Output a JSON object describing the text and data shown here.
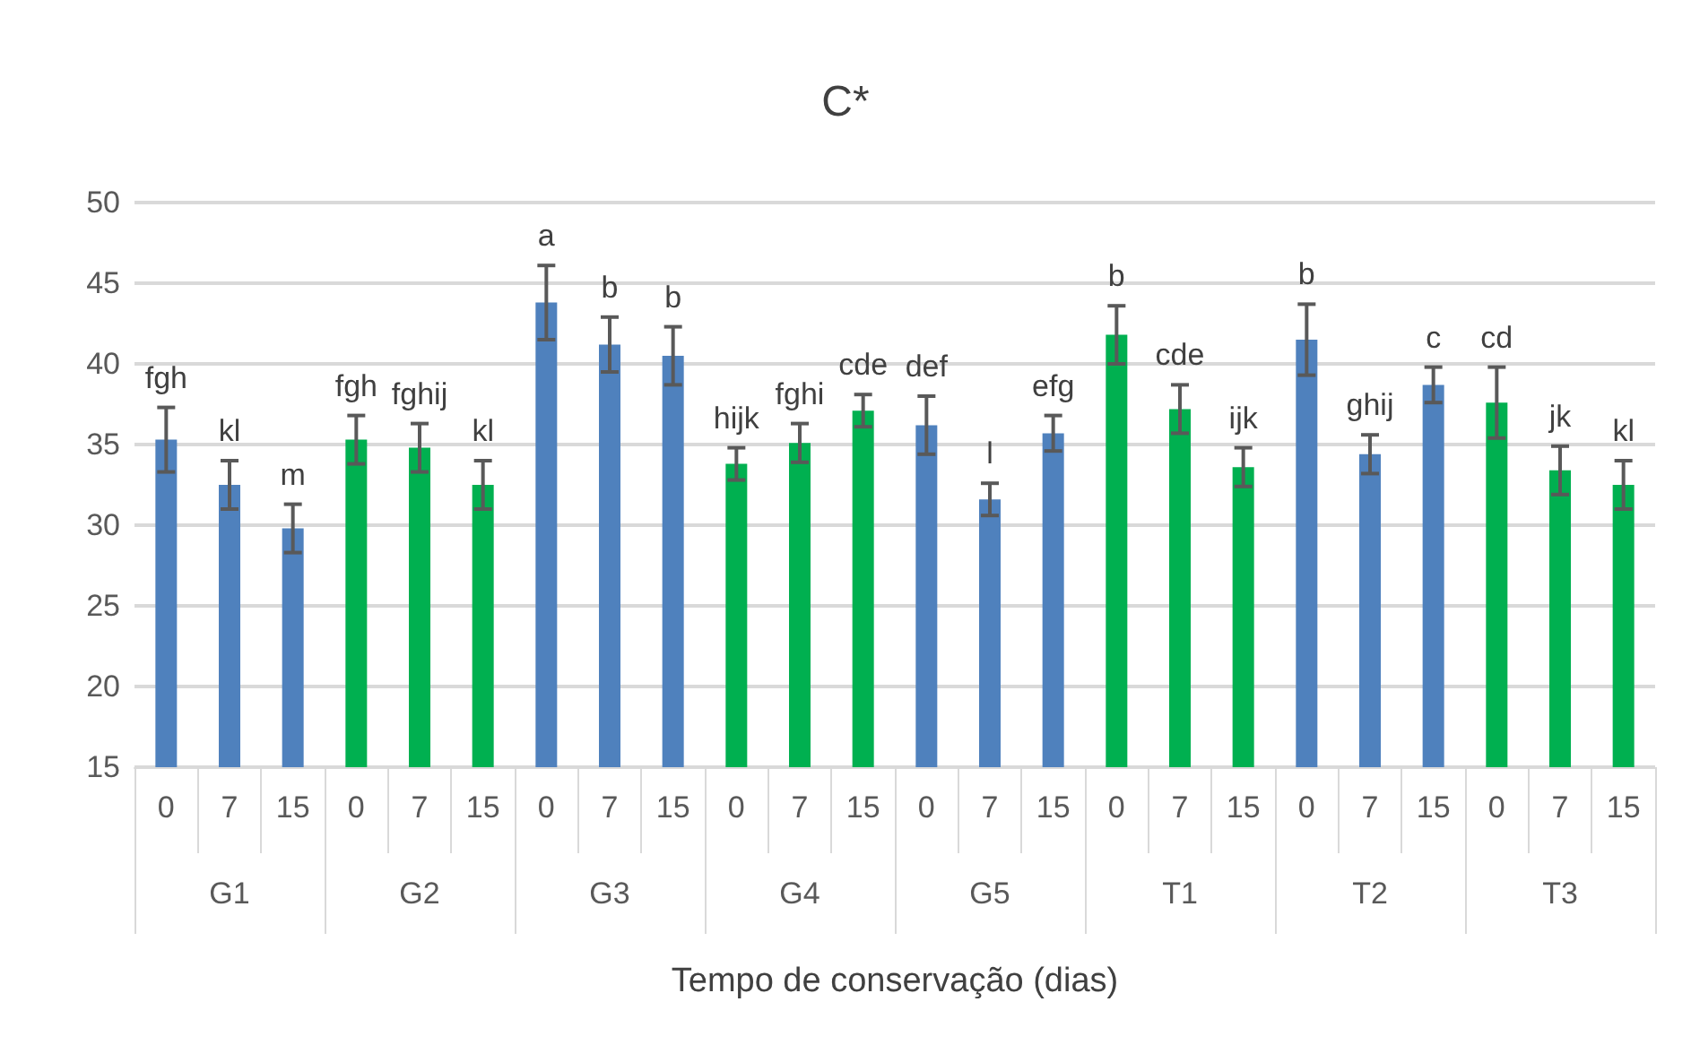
{
  "chart_data": {
    "type": "bar",
    "title": "C*",
    "xlabel": "Tempo de conservação (dias)",
    "categories": [
      "0",
      "7",
      "15",
      "0",
      "7",
      "15",
      "0",
      "7",
      "15",
      "0",
      "7",
      "15",
      "0",
      "7",
      "15",
      "0",
      "7",
      "15",
      "0",
      "7",
      "15",
      "0",
      "7",
      "15"
    ],
    "annotations": [
      "G1",
      "G2",
      "G3",
      "G4",
      "G5",
      "T1",
      "T2",
      "T3"
    ],
    "values": [
      35.3,
      32.5,
      29.8,
      35.3,
      34.8,
      32.5,
      43.8,
      41.2,
      40.5,
      33.8,
      35.1,
      37.1,
      36.2,
      31.6,
      35.7,
      41.8,
      37.2,
      33.6,
      41.5,
      34.4,
      38.7,
      37.6,
      33.4,
      32.5
    ],
    "errors": [
      2.0,
      1.5,
      1.5,
      1.5,
      1.5,
      1.5,
      2.3,
      1.7,
      1.8,
      1.0,
      1.2,
      1.0,
      1.8,
      1.0,
      1.1,
      1.8,
      1.5,
      1.2,
      2.2,
      1.2,
      1.1,
      2.2,
      1.5,
      1.5
    ],
    "value_labels": [
      "fgh",
      "kl",
      "m",
      "fgh",
      "fghij",
      "kl",
      "a",
      "b",
      "b",
      "hijk",
      "fghi",
      "cde",
      "def",
      "l",
      "efg",
      "b",
      "cde",
      "ijk",
      "b",
      "ghij",
      "c",
      "cd",
      "jk",
      "kl"
    ],
    "colors": [
      "#4f81bd",
      "#4f81bd",
      "#4f81bd",
      "#00b050",
      "#00b050",
      "#00b050",
      "#4f81bd",
      "#4f81bd",
      "#4f81bd",
      "#00b050",
      "#00b050",
      "#00b050",
      "#4f81bd",
      "#4f81bd",
      "#4f81bd",
      "#00b050",
      "#00b050",
      "#00b050",
      "#4f81bd",
      "#4f81bd",
      "#4f81bd",
      "#00b050",
      "#00b050",
      "#00b050"
    ],
    "ylim": [
      15,
      50
    ],
    "yticks": [
      15,
      20,
      25,
      30,
      35,
      40,
      45,
      50
    ],
    "grid": "y"
  }
}
